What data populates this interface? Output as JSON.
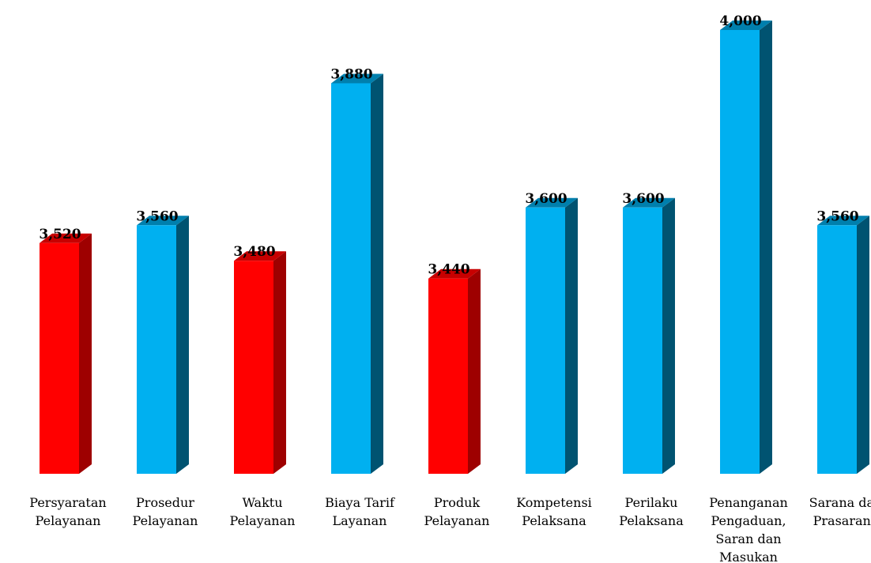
{
  "chart_data": {
    "type": "bar",
    "categories": [
      "Persyaratan Pelayanan",
      "Prosedur Pelayanan",
      "Waktu Pelayanan",
      "Biaya Tarif Layanan",
      "Produk Pelayanan",
      "Kompetensi Pelaksana",
      "Perilaku Pelaksana",
      "Penanganan Pengaduan, Saran dan Masukan",
      "Sarana dan Prasarana"
    ],
    "category_lines": [
      [
        "Persyaratan",
        "Pelayanan"
      ],
      [
        "Prosedur",
        "Pelayanan"
      ],
      [
        "Waktu",
        "Pelayanan"
      ],
      [
        "Biaya Tarif",
        "Layanan"
      ],
      [
        "Produk",
        "Pelayanan"
      ],
      [
        "Kompetensi",
        "Pelaksana"
      ],
      [
        "Perilaku",
        "Pelaksana"
      ],
      [
        "Penanganan",
        "Pengaduan,",
        "Saran dan",
        "Masukan"
      ],
      [
        "Sarana dan",
        "Prasarana"
      ]
    ],
    "values": [
      3.52,
      3.56,
      3.48,
      3.88,
      3.44,
      3.6,
      3.6,
      4.0,
      3.56
    ],
    "value_labels": [
      "3,520",
      "3,560",
      "3,480",
      "3,880",
      "3,440",
      "3,600",
      "3,600",
      "4,000",
      "3,560"
    ],
    "bar_colors": [
      "#ff0000",
      "#00b0f0",
      "#ff0000",
      "#00b0f0",
      "#ff0000",
      "#00b0f0",
      "#00b0f0",
      "#00b0f0",
      "#00b0f0"
    ],
    "style": "3d-column",
    "ylim": [
      3.0,
      4.0
    ],
    "grid": false,
    "legend": "none",
    "title": "",
    "xlabel": "",
    "ylabel": ""
  }
}
